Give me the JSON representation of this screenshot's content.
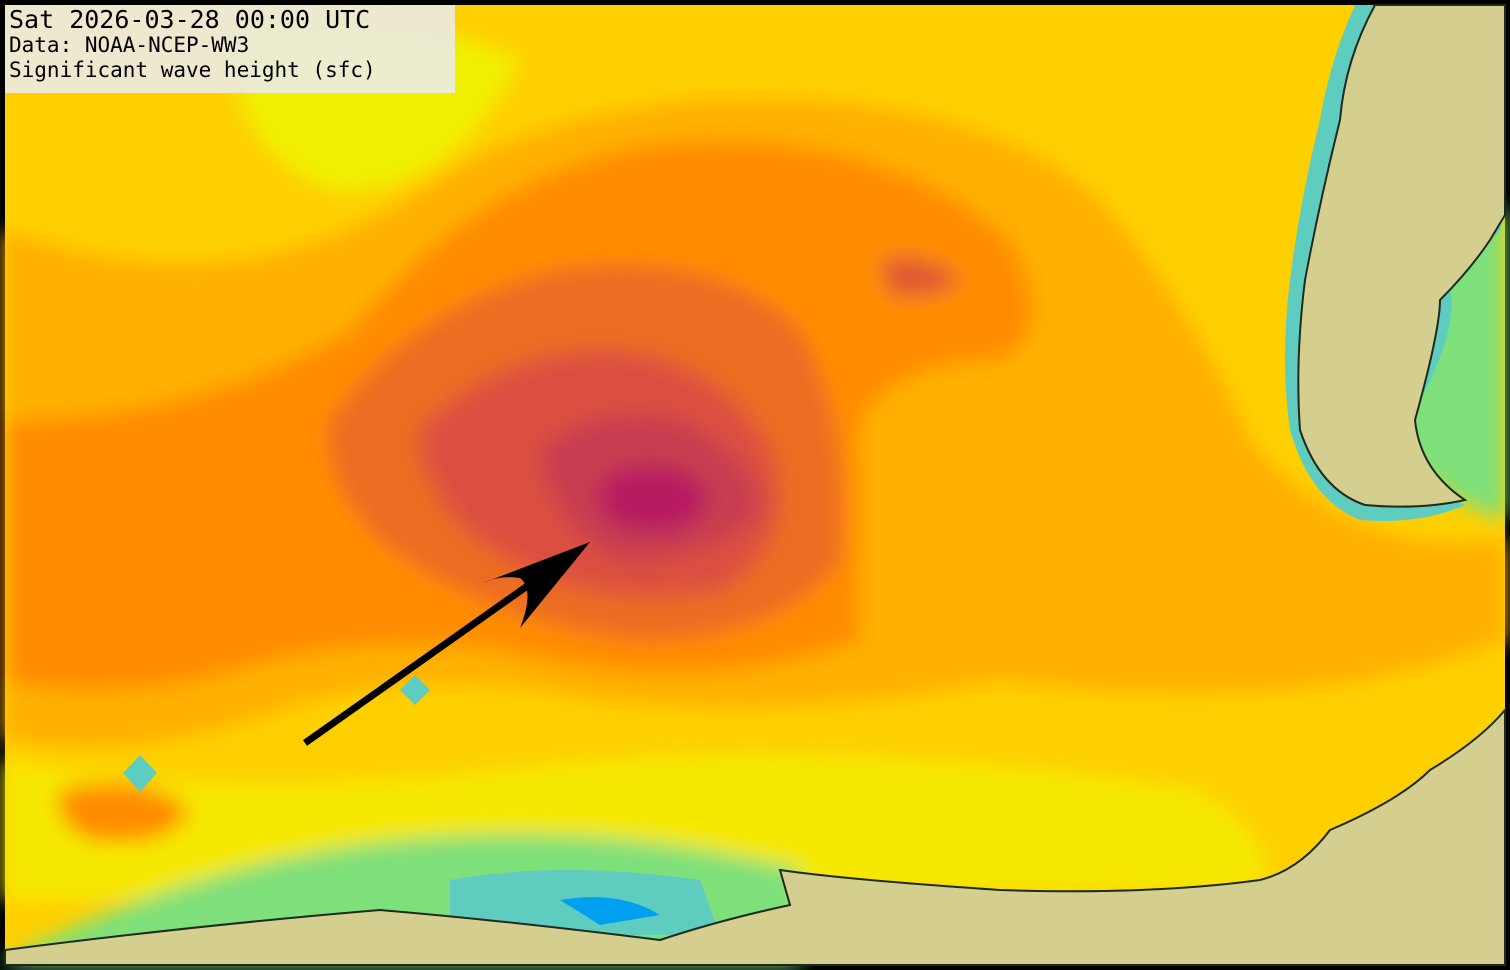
{
  "header": {
    "lines": [
      "Sat 2026-03-28 00:00 UTC",
      "Data: NOAA-NCEP-WW3",
      "Significant wave height (sfc)"
    ]
  }
}
